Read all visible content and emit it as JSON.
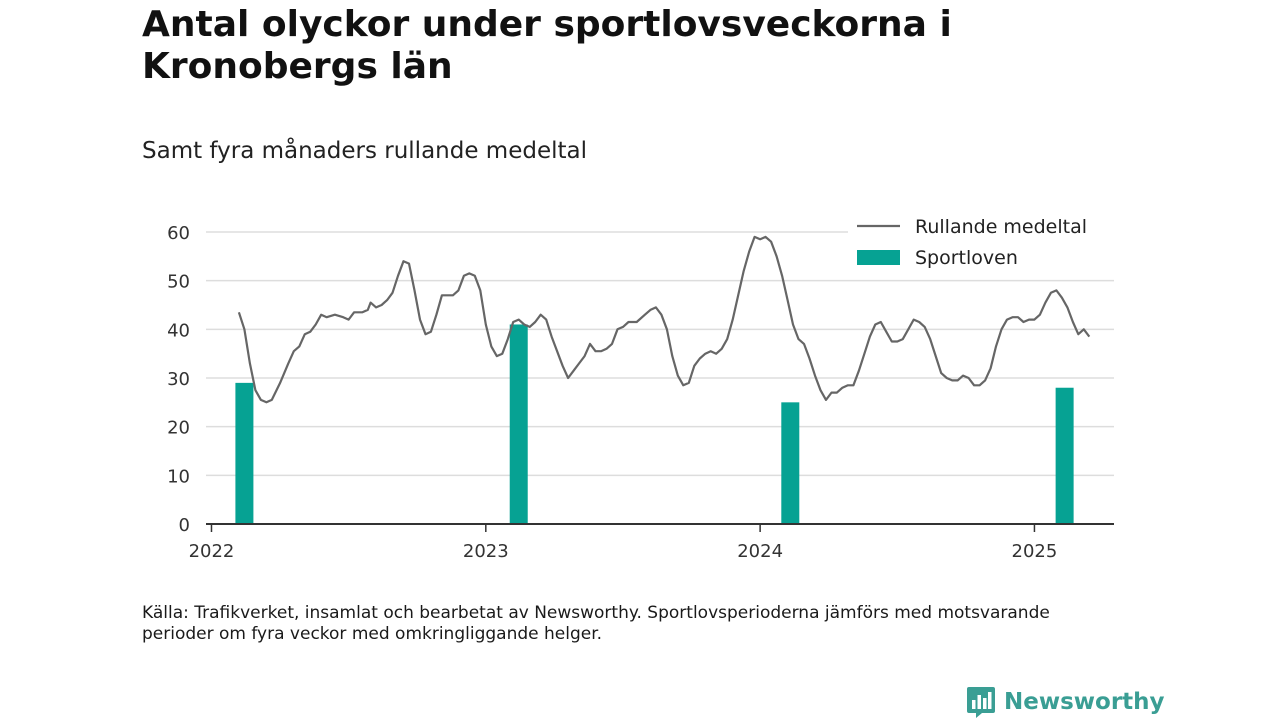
{
  "title": "Antal olyckor under sportlovsveckorna i Kronobergs län",
  "subtitle": "Samt fyra månaders rullande medeltal",
  "source": "Källa: Trafikverket, insamlat och bearbetat av Newsworthy. Sportlovsperioderna jämförs med motsvarande perioder om fyra veckor med omkringliggande helger.",
  "brand": {
    "name": "Newsworthy",
    "color": "#3a9e94"
  },
  "colors": {
    "line": "#666666",
    "bars": "#06a293",
    "grid": "#dddddd",
    "axis": "#333333"
  },
  "chart_data": {
    "type": "bar+line",
    "ylim": [
      0,
      60
    ],
    "yticks": [
      0,
      10,
      20,
      30,
      40,
      50,
      60
    ],
    "xlim": [
      2021.98,
      2025.29
    ],
    "xticks": [
      {
        "value": 2022,
        "label": "2022"
      },
      {
        "value": 2023,
        "label": "2023"
      },
      {
        "value": 2024,
        "label": "2024"
      },
      {
        "value": 2025,
        "label": "2025"
      }
    ],
    "legend": {
      "placement": "top-right",
      "entries": [
        {
          "label": "Rullande medeltal",
          "kind": "line"
        },
        {
          "label": "Sportloven",
          "kind": "bar"
        }
      ]
    },
    "series": [
      {
        "name": "Sportloven",
        "kind": "bar",
        "points": [
          [
            2022.12,
            29
          ],
          [
            2023.12,
            41
          ],
          [
            2024.11,
            25
          ],
          [
            2025.11,
            28
          ]
        ]
      },
      {
        "name": "Rullande medeltal",
        "kind": "line",
        "points": [
          [
            2022.1,
            43.5
          ],
          [
            2022.12,
            40.0
          ],
          [
            2022.14,
            33.0
          ],
          [
            2022.16,
            27.5
          ],
          [
            2022.18,
            25.5
          ],
          [
            2022.2,
            25.0
          ],
          [
            2022.22,
            25.5
          ],
          [
            2022.25,
            29.0
          ],
          [
            2022.28,
            33.0
          ],
          [
            2022.3,
            35.5
          ],
          [
            2022.32,
            36.5
          ],
          [
            2022.34,
            39.0
          ],
          [
            2022.36,
            39.5
          ],
          [
            2022.38,
            41.0
          ],
          [
            2022.4,
            43.0
          ],
          [
            2022.42,
            42.5
          ],
          [
            2022.45,
            43.0
          ],
          [
            2022.48,
            42.5
          ],
          [
            2022.5,
            42.0
          ],
          [
            2022.52,
            43.5
          ],
          [
            2022.55,
            43.5
          ],
          [
            2022.57,
            44.0
          ],
          [
            2022.58,
            45.5
          ],
          [
            2022.6,
            44.5
          ],
          [
            2022.62,
            45.0
          ],
          [
            2022.64,
            46.0
          ],
          [
            2022.66,
            47.5
          ],
          [
            2022.68,
            51.0
          ],
          [
            2022.7,
            54.0
          ],
          [
            2022.72,
            53.5
          ],
          [
            2022.74,
            48.0
          ],
          [
            2022.76,
            42.0
          ],
          [
            2022.78,
            39.0
          ],
          [
            2022.8,
            39.5
          ],
          [
            2022.82,
            43.0
          ],
          [
            2022.84,
            47.0
          ],
          [
            2022.86,
            47.0
          ],
          [
            2022.88,
            47.0
          ],
          [
            2022.9,
            48.0
          ],
          [
            2022.92,
            51.0
          ],
          [
            2022.94,
            51.5
          ],
          [
            2022.96,
            51.0
          ],
          [
            2022.98,
            48.0
          ],
          [
            2023.0,
            41.0
          ],
          [
            2023.02,
            36.5
          ],
          [
            2023.04,
            34.5
          ],
          [
            2023.06,
            35.0
          ],
          [
            2023.08,
            38.0
          ],
          [
            2023.1,
            41.5
          ],
          [
            2023.12,
            42.0
          ],
          [
            2023.14,
            41.0
          ],
          [
            2023.16,
            40.5
          ],
          [
            2023.18,
            41.5
          ],
          [
            2023.2,
            43.0
          ],
          [
            2023.22,
            42.0
          ],
          [
            2023.24,
            38.5
          ],
          [
            2023.26,
            35.5
          ],
          [
            2023.28,
            32.5
          ],
          [
            2023.3,
            30.0
          ],
          [
            2023.32,
            31.5
          ],
          [
            2023.34,
            33.0
          ],
          [
            2023.36,
            34.5
          ],
          [
            2023.38,
            37.0
          ],
          [
            2023.4,
            35.5
          ],
          [
            2023.42,
            35.5
          ],
          [
            2023.44,
            36.0
          ],
          [
            2023.46,
            37.0
          ],
          [
            2023.48,
            40.0
          ],
          [
            2023.5,
            40.5
          ],
          [
            2023.52,
            41.5
          ],
          [
            2023.55,
            41.5
          ],
          [
            2023.58,
            43.0
          ],
          [
            2023.6,
            44.0
          ],
          [
            2023.62,
            44.5
          ],
          [
            2023.64,
            43.0
          ],
          [
            2023.66,
            40.0
          ],
          [
            2023.68,
            34.5
          ],
          [
            2023.7,
            30.5
          ],
          [
            2023.72,
            28.5
          ],
          [
            2023.74,
            29.0
          ],
          [
            2023.76,
            32.5
          ],
          [
            2023.78,
            34.0
          ],
          [
            2023.8,
            35.0
          ],
          [
            2023.82,
            35.5
          ],
          [
            2023.84,
            35.0
          ],
          [
            2023.86,
            36.0
          ],
          [
            2023.88,
            38.0
          ],
          [
            2023.9,
            42.0
          ],
          [
            2023.92,
            47.0
          ],
          [
            2023.94,
            52.0
          ],
          [
            2023.96,
            56.0
          ],
          [
            2023.98,
            59.0
          ],
          [
            2024.0,
            58.5
          ],
          [
            2024.02,
            59.0
          ],
          [
            2024.04,
            58.0
          ],
          [
            2024.06,
            55.0
          ],
          [
            2024.08,
            51.0
          ],
          [
            2024.1,
            46.0
          ],
          [
            2024.12,
            41.0
          ],
          [
            2024.14,
            38.0
          ],
          [
            2024.16,
            37.0
          ],
          [
            2024.18,
            34.0
          ],
          [
            2024.2,
            30.5
          ],
          [
            2024.22,
            27.5
          ],
          [
            2024.24,
            25.5
          ],
          [
            2024.26,
            27.0
          ],
          [
            2024.28,
            27.0
          ],
          [
            2024.3,
            28.0
          ],
          [
            2024.32,
            28.5
          ],
          [
            2024.34,
            28.5
          ],
          [
            2024.36,
            31.5
          ],
          [
            2024.38,
            35.0
          ],
          [
            2024.4,
            38.5
          ],
          [
            2024.42,
            41.0
          ],
          [
            2024.44,
            41.5
          ],
          [
            2024.46,
            39.5
          ],
          [
            2024.48,
            37.5
          ],
          [
            2024.5,
            37.5
          ],
          [
            2024.52,
            38.0
          ],
          [
            2024.54,
            40.0
          ],
          [
            2024.56,
            42.0
          ],
          [
            2024.58,
            41.5
          ],
          [
            2024.6,
            40.5
          ],
          [
            2024.62,
            38.0
          ],
          [
            2024.64,
            34.5
          ],
          [
            2024.66,
            31.0
          ],
          [
            2024.68,
            30.0
          ],
          [
            2024.7,
            29.5
          ],
          [
            2024.72,
            29.5
          ],
          [
            2024.74,
            30.5
          ],
          [
            2024.76,
            30.0
          ],
          [
            2024.78,
            28.5
          ],
          [
            2024.8,
            28.5
          ],
          [
            2024.82,
            29.5
          ],
          [
            2024.84,
            32.0
          ],
          [
            2024.86,
            36.5
          ],
          [
            2024.88,
            40.0
          ],
          [
            2024.9,
            42.0
          ],
          [
            2024.92,
            42.5
          ],
          [
            2024.94,
            42.5
          ],
          [
            2024.96,
            41.5
          ],
          [
            2024.98,
            42.0
          ],
          [
            2025.0,
            42.0
          ],
          [
            2025.02,
            43.0
          ],
          [
            2025.04,
            45.5
          ],
          [
            2025.06,
            47.5
          ],
          [
            2025.08,
            48.0
          ],
          [
            2025.1,
            46.5
          ],
          [
            2025.12,
            44.5
          ],
          [
            2025.14,
            41.5
          ],
          [
            2025.16,
            39.0
          ],
          [
            2025.18,
            40.0
          ],
          [
            2025.2,
            38.5
          ]
        ]
      }
    ]
  }
}
